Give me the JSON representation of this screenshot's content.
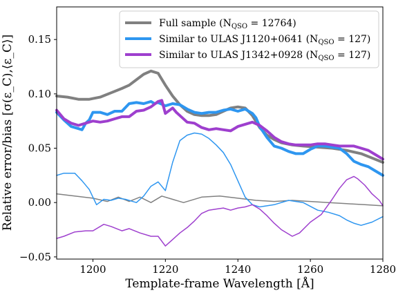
{
  "chart_data": {
    "type": "line",
    "xlabel": "Template-frame Wavelength [Å]",
    "ylabel": "Relative error/bias [σ(ε_C),⟨ε_C⟩]",
    "xlim": [
      1190,
      1280
    ],
    "ylim": [
      -0.052,
      0.18
    ],
    "xticks": [
      "1200",
      "1220",
      "1240",
      "1260",
      "1280"
    ],
    "yticks": [
      "−0.05",
      "0.00",
      "0.05",
      "0.10",
      "0.15"
    ],
    "legend_position": "top-right",
    "grid": false,
    "legend": [
      {
        "text": "Full sample (N",
        "sub": "QSO",
        "tail": " = 12764)",
        "color": "#808080"
      },
      {
        "text": "Similar to ULAS J1120+0641 (N",
        "sub": "QSO",
        "tail": " = 127)",
        "color": "#2e96f0"
      },
      {
        "text": "Similar to ULAS J1342+0928 (N",
        "sub": "QSO",
        "tail": " = 127)",
        "color": "#9e3fce"
      }
    ],
    "series": [
      {
        "name": "Full sample error",
        "color": "#808080",
        "width": 4,
        "x": [
          1190,
          1193,
          1196,
          1199,
          1202,
          1205,
          1208,
          1210,
          1212,
          1214,
          1216,
          1218,
          1220,
          1222,
          1224,
          1226,
          1228,
          1230,
          1232,
          1234,
          1236,
          1238,
          1240,
          1242,
          1244,
          1246,
          1248,
          1250,
          1252,
          1255,
          1258,
          1262,
          1266,
          1270,
          1274,
          1277,
          1280
        ],
        "y": [
          0.098,
          0.097,
          0.095,
          0.095,
          0.097,
          0.101,
          0.105,
          0.108,
          0.113,
          0.118,
          0.121,
          0.119,
          0.108,
          0.098,
          0.09,
          0.084,
          0.081,
          0.08,
          0.08,
          0.081,
          0.084,
          0.087,
          0.088,
          0.087,
          0.08,
          0.069,
          0.062,
          0.058,
          0.055,
          0.053,
          0.052,
          0.051,
          0.05,
          0.048,
          0.045,
          0.041,
          0.037
        ]
      },
      {
        "name": "Similar to ULAS J1120+0641 error",
        "color": "#2e96f0",
        "width": 4,
        "x": [
          1190,
          1192,
          1194,
          1196,
          1197,
          1198,
          1199,
          1200,
          1202,
          1204,
          1206,
          1208,
          1210,
          1212,
          1214,
          1216,
          1217,
          1218,
          1220,
          1222,
          1224,
          1226,
          1228,
          1230,
          1232,
          1234,
          1236,
          1238,
          1240,
          1242,
          1244,
          1245,
          1246,
          1248,
          1250,
          1252,
          1254,
          1256,
          1258,
          1260,
          1262,
          1264,
          1266,
          1268,
          1270,
          1272,
          1274,
          1276,
          1278,
          1280
        ],
        "y": [
          0.083,
          0.076,
          0.07,
          0.068,
          0.067,
          0.073,
          0.076,
          0.083,
          0.083,
          0.081,
          0.084,
          0.084,
          0.091,
          0.092,
          0.091,
          0.093,
          0.091,
          0.092,
          0.089,
          0.091,
          0.09,
          0.086,
          0.083,
          0.082,
          0.083,
          0.083,
          0.085,
          0.086,
          0.084,
          0.086,
          0.082,
          0.078,
          0.07,
          0.06,
          0.052,
          0.05,
          0.047,
          0.045,
          0.045,
          0.049,
          0.052,
          0.052,
          0.051,
          0.05,
          0.045,
          0.038,
          0.035,
          0.033,
          0.029,
          0.025
        ]
      },
      {
        "name": "Similar to ULAS J1342+0928 error",
        "color": "#9e3fce",
        "width": 4,
        "x": [
          1190,
          1192,
          1194,
          1196,
          1198,
          1200,
          1202,
          1204,
          1206,
          1208,
          1210,
          1212,
          1214,
          1216,
          1218,
          1219,
          1220,
          1222,
          1223,
          1224,
          1226,
          1228,
          1230,
          1232,
          1234,
          1236,
          1238,
          1240,
          1242,
          1244,
          1246,
          1248,
          1250,
          1252,
          1254,
          1256,
          1258,
          1260,
          1262,
          1264,
          1266,
          1268,
          1270,
          1272,
          1274,
          1276,
          1278,
          1280
        ],
        "y": [
          0.085,
          0.077,
          0.073,
          0.071,
          0.073,
          0.075,
          0.074,
          0.075,
          0.077,
          0.079,
          0.079,
          0.084,
          0.085,
          0.088,
          0.093,
          0.094,
          0.082,
          0.087,
          0.083,
          0.08,
          0.074,
          0.073,
          0.069,
          0.067,
          0.068,
          0.067,
          0.066,
          0.07,
          0.072,
          0.074,
          0.071,
          0.066,
          0.06,
          0.056,
          0.054,
          0.053,
          0.053,
          0.053,
          0.054,
          0.054,
          0.053,
          0.052,
          0.052,
          0.052,
          0.05,
          0.048,
          0.044,
          0.04
        ]
      },
      {
        "name": "Full sample bias",
        "color": "#808080",
        "width": 1.5,
        "x": [
          1190,
          1195,
          1200,
          1204,
          1207,
          1210,
          1213,
          1216,
          1219,
          1222,
          1225,
          1230,
          1235,
          1240,
          1245,
          1250,
          1255,
          1260,
          1265,
          1270,
          1275,
          1280
        ],
        "y": [
          0.008,
          0.006,
          0.004,
          0.001,
          0.005,
          0.001,
          0.005,
          0.0,
          0.006,
          0.003,
          0.0,
          0.005,
          0.006,
          0.004,
          0.002,
          0.001,
          0.002,
          0.001,
          0.0,
          -0.001,
          -0.002,
          -0.003
        ]
      },
      {
        "name": "Similar to ULAS J1120+0641 bias",
        "color": "#2e96f0",
        "width": 1.5,
        "x": [
          1190,
          1192,
          1195,
          1197,
          1199,
          1200,
          1201,
          1203,
          1205,
          1207,
          1209,
          1212,
          1214,
          1216,
          1218,
          1220,
          1222,
          1224,
          1226,
          1228,
          1230,
          1232,
          1234,
          1236,
          1238,
          1240,
          1242,
          1244,
          1246,
          1248,
          1250,
          1254,
          1258,
          1262,
          1265,
          1268,
          1270,
          1272,
          1274,
          1277,
          1280
        ],
        "y": [
          0.025,
          0.027,
          0.027,
          0.02,
          0.012,
          0.005,
          -0.002,
          0.003,
          0.002,
          0.004,
          0.003,
          0.0,
          0.006,
          0.015,
          0.019,
          0.011,
          0.037,
          0.057,
          0.062,
          0.064,
          0.063,
          0.059,
          0.053,
          0.046,
          0.035,
          0.02,
          0.005,
          -0.002,
          -0.004,
          -0.003,
          -0.002,
          0.002,
          0.0,
          -0.007,
          -0.009,
          -0.012,
          -0.016,
          -0.019,
          -0.021,
          -0.018,
          -0.013
        ]
      },
      {
        "name": "Similar to ULAS J1342+0928 bias",
        "color": "#9e3fce",
        "width": 1.5,
        "x": [
          1190,
          1192,
          1195,
          1198,
          1200,
          1203,
          1205,
          1208,
          1210,
          1213,
          1216,
          1218,
          1220,
          1222,
          1224,
          1226,
          1228,
          1230,
          1232,
          1234,
          1236,
          1238,
          1240,
          1242,
          1244,
          1246,
          1248,
          1250,
          1252,
          1255,
          1257,
          1260,
          1263,
          1266,
          1268,
          1270,
          1272,
          1273,
          1275,
          1277,
          1279,
          1280
        ],
        "y": [
          -0.033,
          -0.031,
          -0.027,
          -0.026,
          -0.026,
          -0.02,
          -0.022,
          -0.026,
          -0.024,
          -0.028,
          -0.031,
          -0.031,
          -0.04,
          -0.034,
          -0.028,
          -0.023,
          -0.017,
          -0.01,
          -0.007,
          -0.006,
          -0.005,
          -0.007,
          -0.005,
          -0.004,
          -0.002,
          -0.006,
          -0.012,
          -0.019,
          -0.025,
          -0.031,
          -0.028,
          -0.018,
          -0.011,
          0.003,
          0.013,
          0.021,
          0.024,
          0.022,
          0.016,
          0.008,
          0.002,
          -0.003
        ]
      }
    ]
  }
}
